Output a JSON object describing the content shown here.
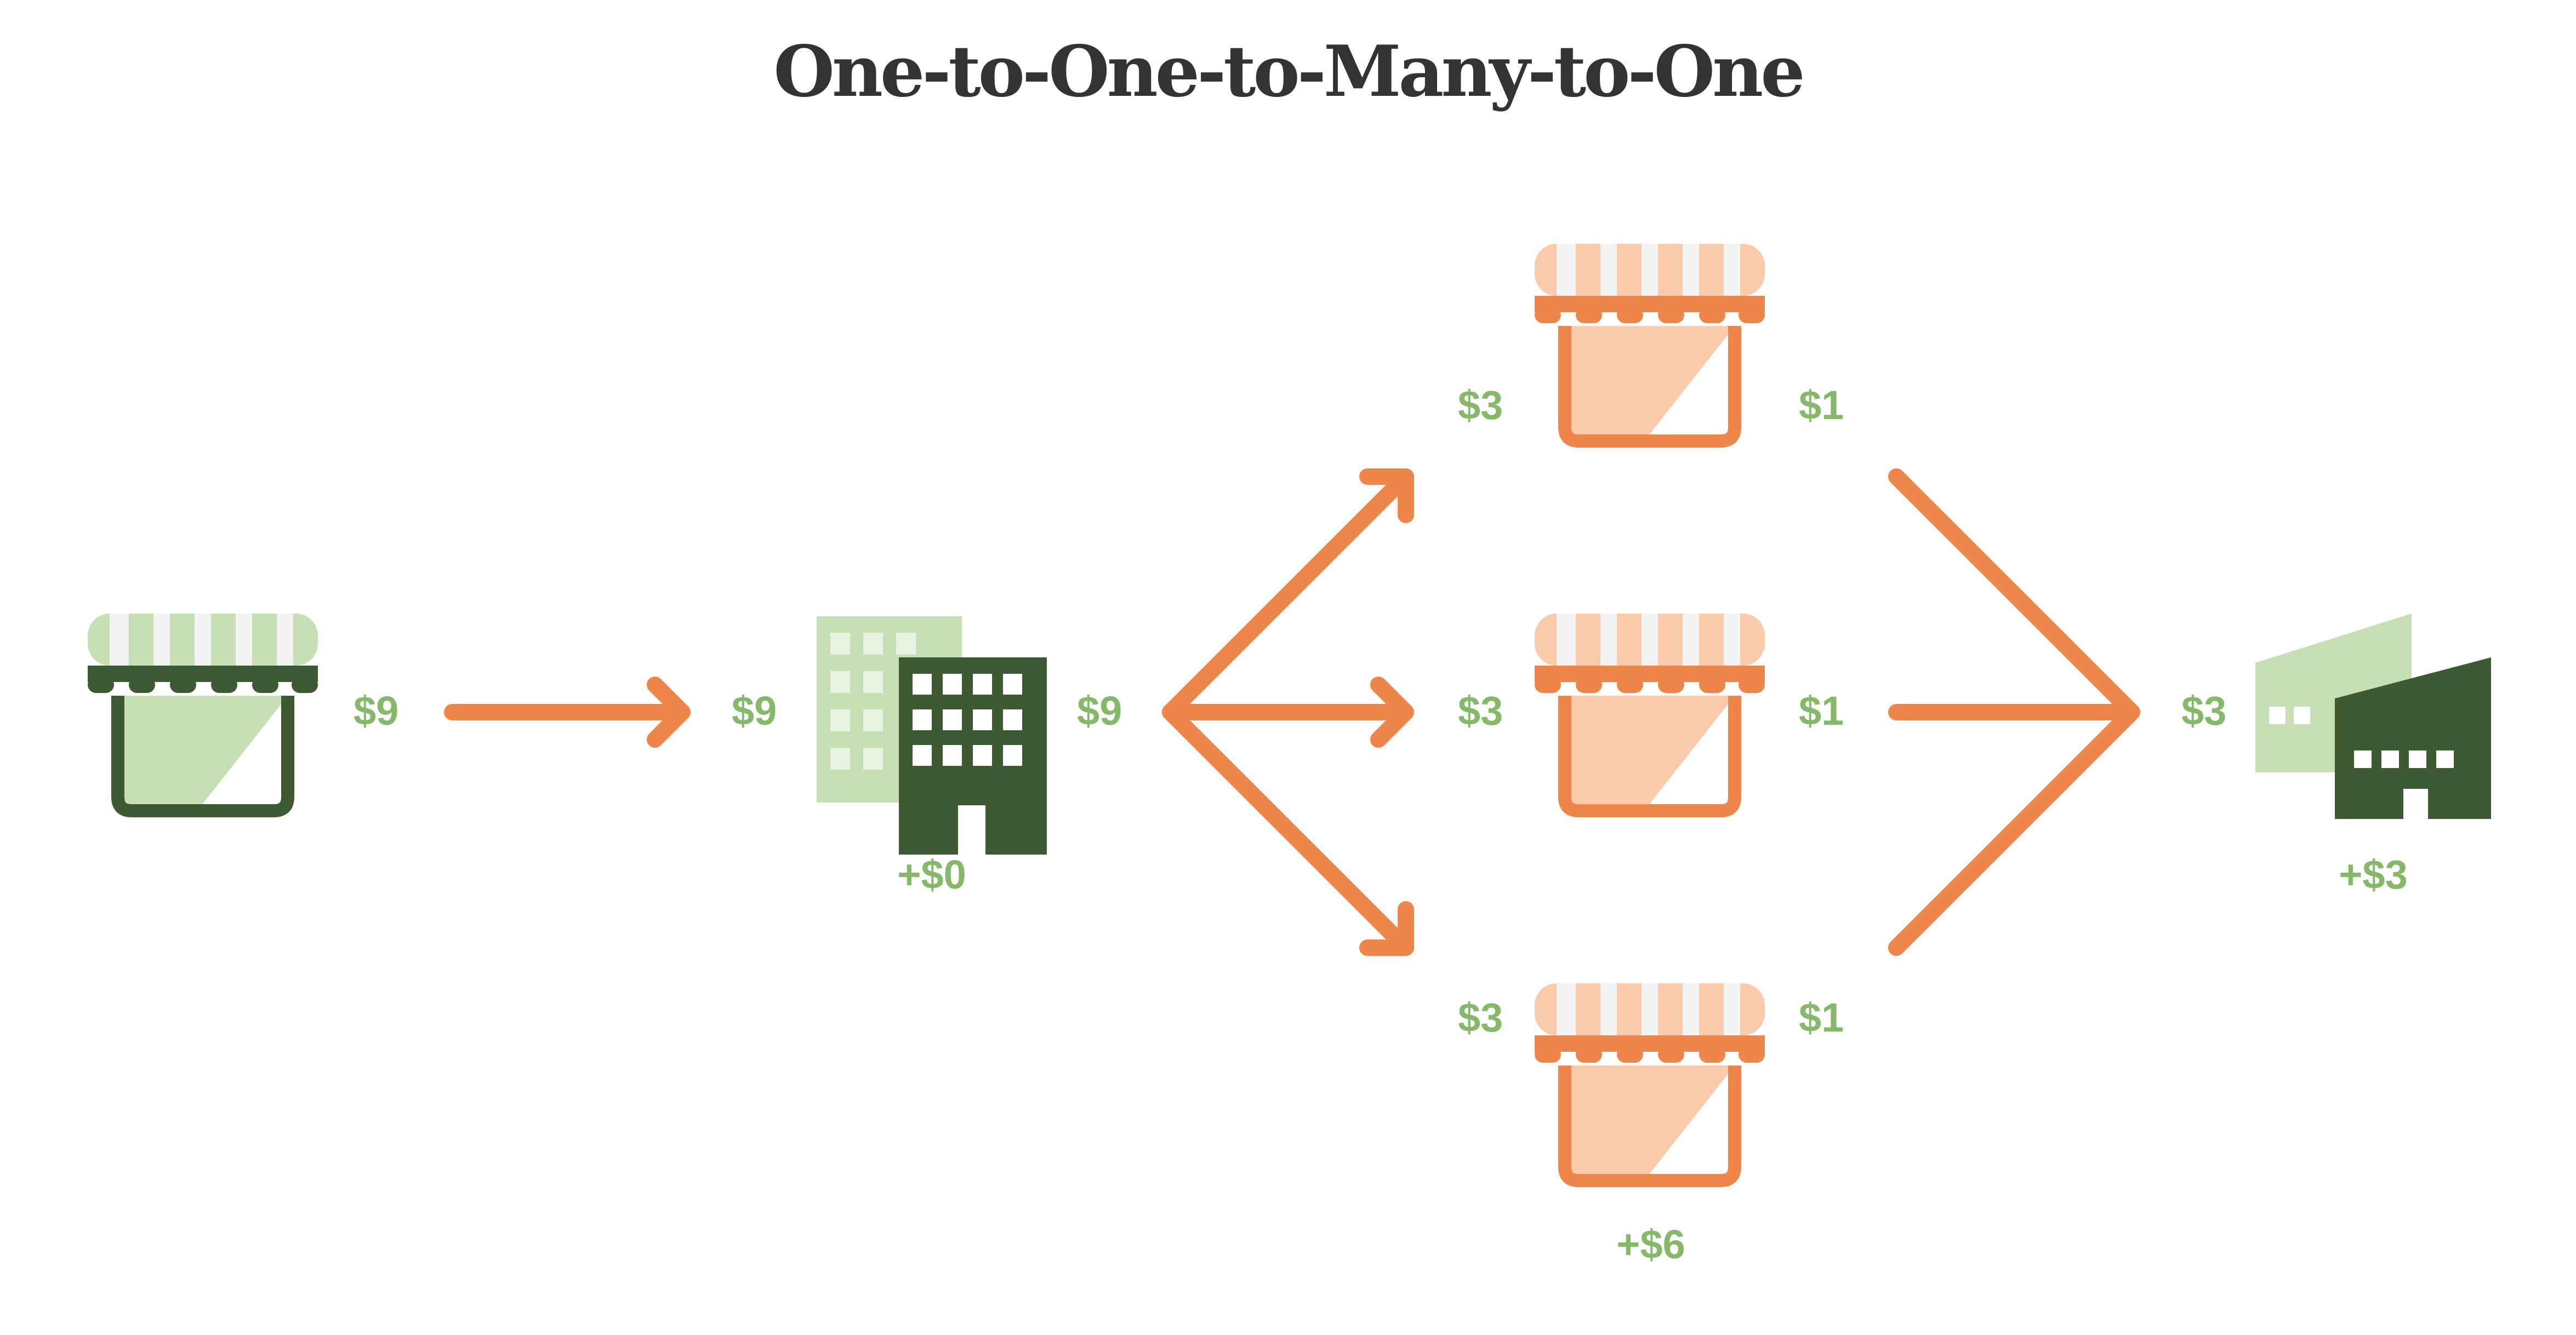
{
  "title": "One-to-One-to-Many-to-One",
  "colors": {
    "arrow": "#ee8549",
    "value_text": "#86b86a",
    "green_dark": "#3e5a32",
    "green_light": "#c6dfb4",
    "orange": "#ee8549",
    "orange_light": "#fbcaab",
    "awning_white": "#f3f3f3"
  },
  "nodes": {
    "source_store": {
      "icon": "storefront-icon",
      "out_value": "$9"
    },
    "office": {
      "icon": "office-buildings-icon",
      "in_value": "$9",
      "out_value": "$9",
      "gain": "+$0"
    },
    "retail_stores": [
      {
        "icon": "storefront-icon",
        "in_value": "$3",
        "out_value": "$1"
      },
      {
        "icon": "storefront-icon",
        "in_value": "$3",
        "out_value": "$1"
      },
      {
        "icon": "storefront-icon",
        "in_value": "$3",
        "out_value": "$1"
      }
    ],
    "retail_gain": "+$6",
    "factory": {
      "icon": "factory-icon",
      "in_value": "$3",
      "gain": "+$3"
    }
  }
}
